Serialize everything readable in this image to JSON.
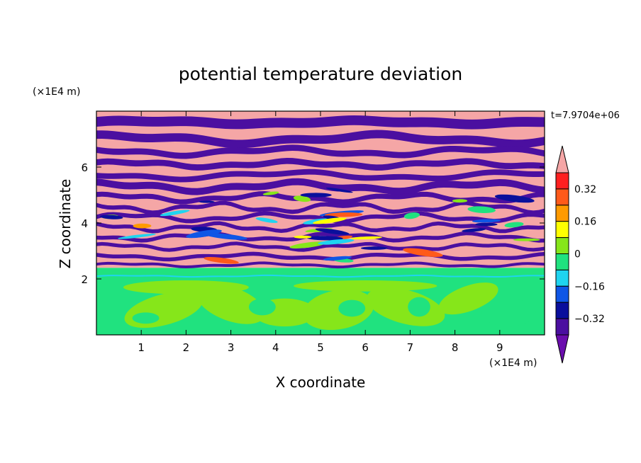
{
  "chart_data": {
    "type": "heatmap",
    "title": "potential temperature deviation",
    "xlabel": "X coordinate",
    "ylabel": "Z coordinate",
    "x_unit": "(×1E4 m)",
    "y_unit": "(×1E4 m)",
    "time_label": "t=7.9704e+06",
    "xlim": [
      0,
      10
    ],
    "ylim": [
      0,
      8
    ],
    "x_ticks": [
      1,
      2,
      3,
      4,
      5,
      6,
      7,
      8,
      9
    ],
    "y_ticks": [
      2,
      4,
      6
    ],
    "x_tick_labels": [
      "1",
      "2",
      "3",
      "4",
      "5",
      "6",
      "7",
      "8",
      "9"
    ],
    "y_tick_labels": [
      "2",
      "4",
      "6"
    ],
    "colorbar": {
      "levels": [
        -0.4,
        -0.32,
        -0.24,
        -0.16,
        -0.08,
        0,
        0.08,
        0.16,
        0.24,
        0.32,
        0.4
      ],
      "tick_values": [
        0.32,
        0.16,
        0,
        -0.16,
        -0.32
      ],
      "tick_labels": [
        "0.32",
        "0.16",
        "0",
        "−0.16",
        "−0.32"
      ],
      "colors": [
        "#6a0dad",
        "#4b0fa0",
        "#0a0f9c",
        "#0f56e6",
        "#1fd4f0",
        "#20e27f",
        "#86e61a",
        "#ffff00",
        "#ff9a00",
        "#ff5a1a",
        "#ff2020",
        "#f5a6a6"
      ],
      "extend": "both"
    }
  }
}
